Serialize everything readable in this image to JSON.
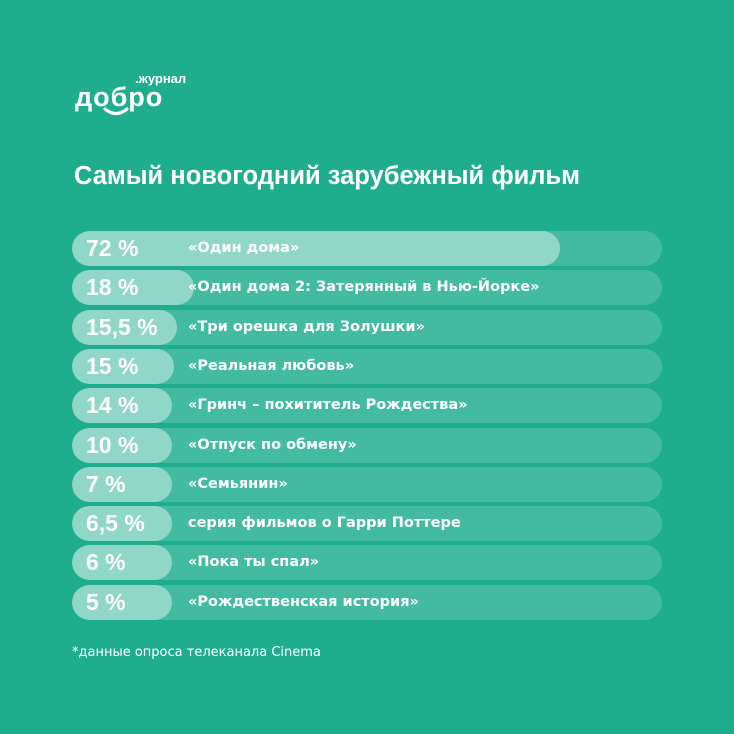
{
  "brand": {
    "main": "добро",
    "sub": ".журнал"
  },
  "chart_data": {
    "type": "bar",
    "orientation": "horizontal",
    "title": "Самый новогодний зарубежный фильм",
    "categories": [
      "«Один дома»",
      "«Один дома 2: Затерянный в Нью-Йорке»",
      "«Три орешка для Золушки»",
      "«Реальная любовь»",
      "«Гринч – похититель Рождества»",
      "«Отпуск по обмену»",
      "«Семьянин»",
      "серия фильмов о Гарри Поттере",
      "«Пока ты спал»",
      "«Рождественская история»"
    ],
    "values": [
      72,
      18,
      15.5,
      15,
      14,
      10,
      7,
      6.5,
      6,
      5
    ],
    "value_labels": [
      "72 %",
      "18 %",
      "15,5 %",
      "15 %",
      "14 %",
      "10 %",
      "7 %",
      "6,5 %",
      "6 %",
      "5 %"
    ],
    "xlim": [
      0,
      87
    ]
  },
  "footnote": "*данные опроса телеканала Cinema",
  "colors": {
    "background": "#1eae8e",
    "bar_track": "rgba(255,255,255,0.17)",
    "bar_fill": "rgba(255,255,255,0.42)",
    "text": "#ffffff"
  }
}
